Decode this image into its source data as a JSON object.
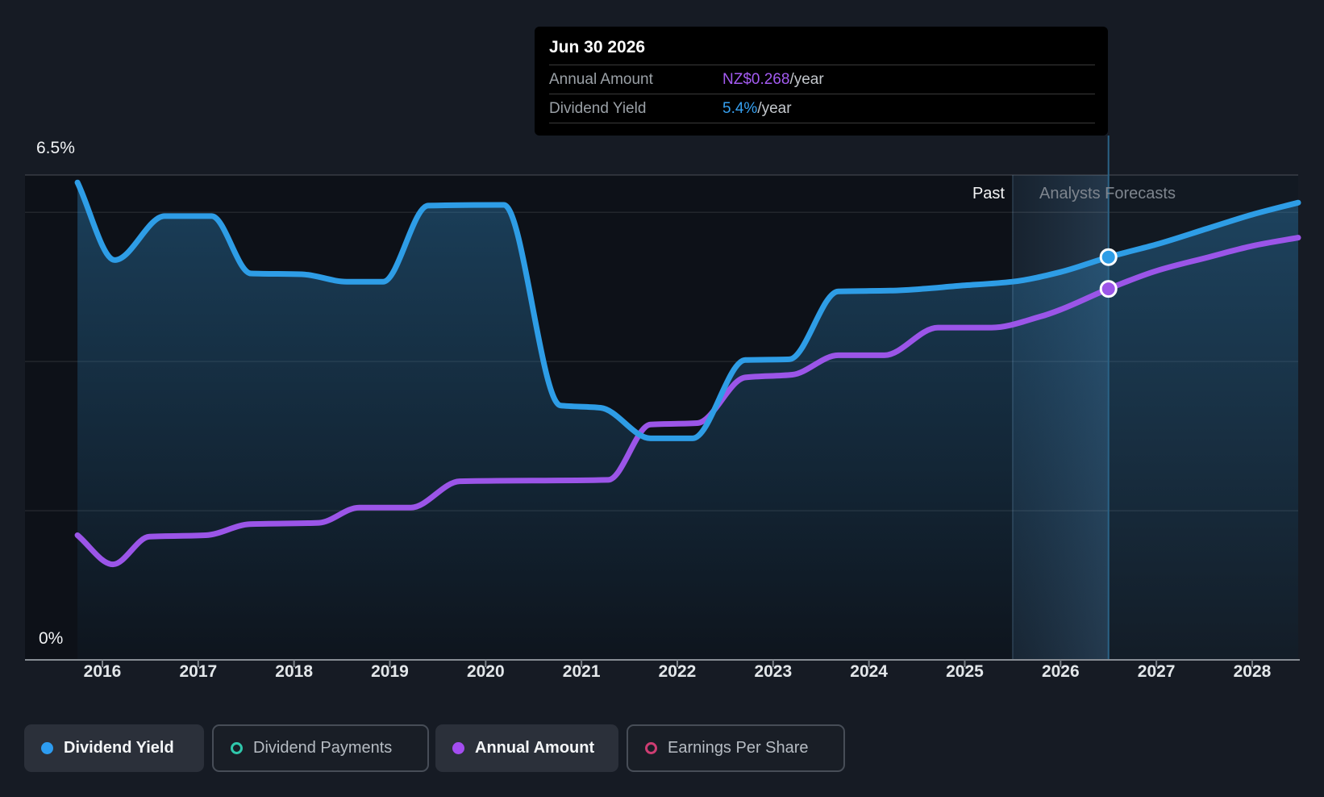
{
  "tooltip": {
    "title": "Jun 30 2026",
    "rows": [
      {
        "label": "Annual Amount",
        "value": "NZ$0.268",
        "suffix": "/year",
        "color": "#a45bf2"
      },
      {
        "label": "Dividend Yield",
        "value": "5.4%",
        "suffix": "/year",
        "color": "#36a0f0"
      }
    ]
  },
  "axis": {
    "y_top_label": "6.5%",
    "y_bottom_label": "0%",
    "years": [
      "2016",
      "2017",
      "2018",
      "2019",
      "2020",
      "2021",
      "2022",
      "2023",
      "2024",
      "2025",
      "2026",
      "2027",
      "2028"
    ]
  },
  "regions": {
    "past_label": "Past",
    "forecast_label": "Analysts Forecasts"
  },
  "legend": [
    {
      "label": "Dividend Yield",
      "marker": "filled",
      "color": "#2d9cf0",
      "active": true
    },
    {
      "label": "Dividend Payments",
      "marker": "ring",
      "color": "#2fc7ab",
      "active": false
    },
    {
      "label": "Annual Amount",
      "marker": "filled",
      "color": "#a44df0",
      "active": true
    },
    {
      "label": "Earnings Per Share",
      "marker": "ring",
      "color": "#cd3d72",
      "active": false
    }
  ],
  "colors": {
    "yield_line": "#2e9de6",
    "amount_line": "#9b55e8",
    "area_fill": "rgba(47,134,192,0.40)",
    "hover_line": "#2b6387",
    "grid": "rgba(255,255,255,0.09)",
    "grid_top": "rgba(255,255,255,0.16)",
    "axis": "#878d94",
    "plot_bg": "#0d1118",
    "forecast_tint": "rgba(96,156,205,0.06)",
    "band_from": "rgba(70,120,165,0.10)",
    "band_to": "rgba(100,165,220,0.22)"
  },
  "chart_data": {
    "type": "area",
    "title": "Dividend history and forecast",
    "x_domain": [
      2015.74,
      2028.48
    ],
    "x_ticks": [
      2016,
      2017,
      2018,
      2019,
      2020,
      2021,
      2022,
      2023,
      2024,
      2025,
      2026,
      2027,
      2028
    ],
    "y_axis": {
      "unit": "%",
      "min": 0,
      "max": 6.5,
      "gridlines_pct": [
        6.5,
        6,
        4,
        2,
        0
      ]
    },
    "past_until": 2025.5,
    "hover_x": 2026.5,
    "legend_position": "bottom",
    "series": [
      {
        "name": "Dividend Yield",
        "unit": "%",
        "fill": true,
        "scale_max": 6.5,
        "points": [
          [
            2015.74,
            6.4
          ],
          [
            2016.13,
            5.36
          ],
          [
            2016.65,
            5.95
          ],
          [
            2017.14,
            5.95
          ],
          [
            2017.55,
            5.18
          ],
          [
            2018.08,
            5.17
          ],
          [
            2018.55,
            5.07
          ],
          [
            2018.93,
            5.07
          ],
          [
            2019.4,
            6.09
          ],
          [
            2020.19,
            6.1
          ],
          [
            2020.78,
            3.41
          ],
          [
            2021.2,
            3.38
          ],
          [
            2021.72,
            2.97
          ],
          [
            2022.16,
            2.97
          ],
          [
            2022.71,
            4.02
          ],
          [
            2023.17,
            4.03
          ],
          [
            2023.68,
            4.94
          ],
          [
            2024.22,
            4.95
          ],
          [
            2025.0,
            5.02
          ],
          [
            2025.5,
            5.07
          ],
          [
            2026.0,
            5.2
          ],
          [
            2026.5,
            5.4
          ],
          [
            2027.0,
            5.57
          ],
          [
            2027.55,
            5.79
          ],
          [
            2028.0,
            5.97
          ],
          [
            2028.48,
            6.13
          ]
        ]
      },
      {
        "name": "Annual Amount",
        "unit": "NZ$/year",
        "fill": false,
        "scale_max": 0.3502,
        "points": [
          [
            2015.74,
            0.09
          ],
          [
            2016.11,
            0.069
          ],
          [
            2016.49,
            0.089
          ],
          [
            2017.08,
            0.09
          ],
          [
            2017.54,
            0.098
          ],
          [
            2018.26,
            0.099
          ],
          [
            2018.68,
            0.11
          ],
          [
            2019.22,
            0.11
          ],
          [
            2019.73,
            0.129
          ],
          [
            2021.28,
            0.13
          ],
          [
            2021.72,
            0.17
          ],
          [
            2022.21,
            0.171
          ],
          [
            2022.71,
            0.204
          ],
          [
            2023.2,
            0.206
          ],
          [
            2023.68,
            0.22
          ],
          [
            2024.16,
            0.22
          ],
          [
            2024.72,
            0.24
          ],
          [
            2025.28,
            0.24
          ],
          [
            2025.79,
            0.248
          ],
          [
            2026.0,
            0.253
          ],
          [
            2026.5,
            0.268
          ],
          [
            2027.0,
            0.281
          ],
          [
            2027.55,
            0.291
          ],
          [
            2028.0,
            0.299
          ],
          [
            2028.48,
            0.305
          ]
        ]
      }
    ],
    "markers": [
      {
        "series": "Dividend Yield",
        "x": 2026.5,
        "value": 5.4
      },
      {
        "series": "Annual Amount",
        "x": 2026.5,
        "value": 0.268
      }
    ]
  }
}
